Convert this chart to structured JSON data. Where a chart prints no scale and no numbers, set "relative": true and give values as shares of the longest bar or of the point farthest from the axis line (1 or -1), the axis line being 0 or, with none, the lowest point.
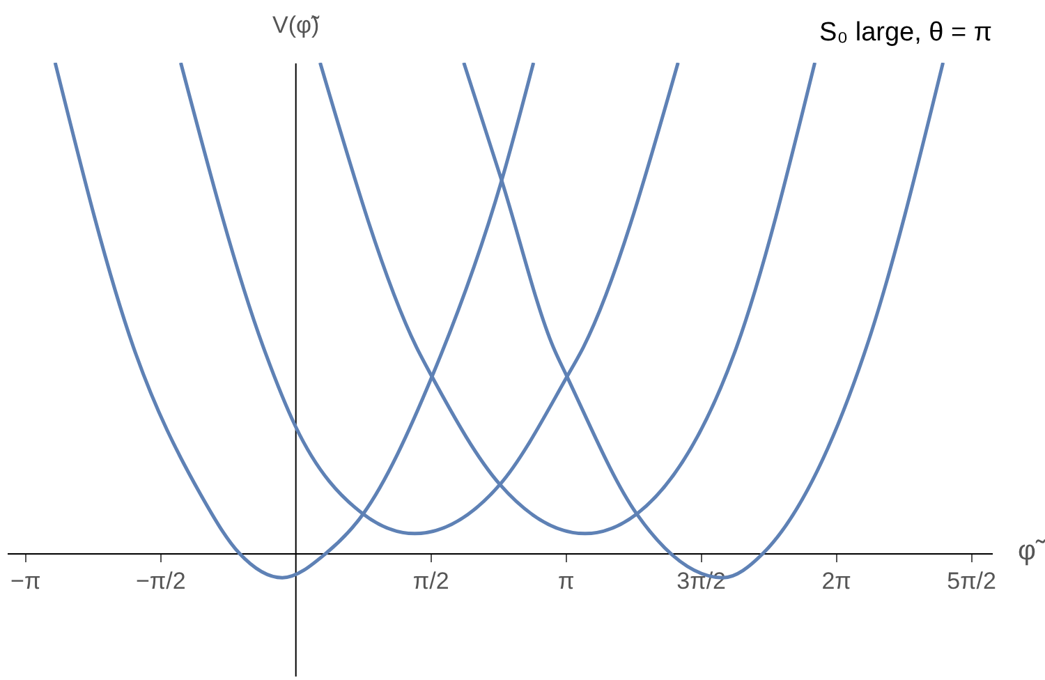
{
  "chart_data": {
    "type": "line",
    "relative": true,
    "xlabel": "φ̃",
    "ylabel": "V(φ̃)",
    "annotations": [
      "S₀ large,  θ = π"
    ],
    "xlim": [
      -3.35,
      8.1
    ],
    "xticks": [
      {
        "value": -3.1416,
        "label": "−π"
      },
      {
        "value": -1.5708,
        "label": "−π/2"
      },
      {
        "value": 1.5708,
        "label": "π/2"
      },
      {
        "value": 3.1416,
        "label": "π"
      },
      {
        "value": 4.7124,
        "label": "3π/2"
      },
      {
        "value": 6.2832,
        "label": "2π"
      },
      {
        "value": 7.854,
        "label": "5π/2"
      }
    ],
    "tick_labels": "x",
    "grid": false,
    "marker": "none",
    "line_style": "solid",
    "series": [
      {
        "color": "#5e81b5",
        "x": [
          -2.79,
          -1.88,
          -1.1,
          -0.65,
          -0.15,
          0.36,
          0.79,
          1.59,
          2.4,
          2.77
        ],
        "values": [
          1.0,
          0.42,
          0.12,
          0.0,
          -0.05,
          0.0,
          0.08,
          0.36,
          0.76,
          1.0
        ]
      },
      {
        "color": "#5e81b5",
        "x": [
          -1.33,
          -0.37,
          0.0,
          0.79,
          1.39,
          2.38,
          3.16,
          3.35,
          4.45
        ],
        "values": [
          1.0,
          0.42,
          0.26,
          0.08,
          0.04,
          0.14,
          0.36,
          0.42,
          1.0
        ]
      },
      {
        "color": "#5e81b5",
        "x": [
          0.29,
          1.41,
          1.59,
          2.38,
          3.37,
          3.97,
          5.13,
          6.04
        ],
        "values": [
          1.0,
          0.42,
          0.36,
          0.14,
          0.04,
          0.08,
          0.42,
          1.0
        ]
      },
      {
        "color": "#5e81b5",
        "x": [
          1.96,
          2.4,
          3.0,
          3.16,
          3.97,
          4.97,
          5.44,
          6.64,
          7.53
        ],
        "values": [
          1.0,
          0.76,
          0.42,
          0.36,
          0.08,
          -0.05,
          0.0,
          0.42,
          1.0
        ]
      }
    ]
  }
}
